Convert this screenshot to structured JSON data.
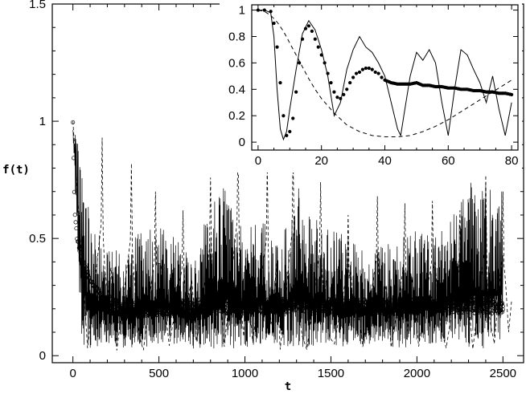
{
  "chart_data": [
    {
      "type": "line",
      "xlabel": "t",
      "ylabel": "f(t)",
      "xlim": [
        -120,
        2620
      ],
      "ylim": [
        -0.03,
        1.5
      ],
      "xticks": [
        0,
        500,
        1000,
        1500,
        2000,
        2500
      ],
      "yticks": [
        0,
        0.5,
        1,
        1.5
      ],
      "xtick_labels": [
        "0",
        "500",
        "1000",
        "1500",
        "2000",
        "2500"
      ],
      "ytick_labels": [
        "0",
        "0.5",
        "1",
        "1.5"
      ],
      "grid": false,
      "legend": "none",
      "series": [
        {
          "style": "dotted-points",
          "x": [
            0,
            10,
            25,
            50,
            80,
            120,
            160,
            200,
            250,
            300,
            400,
            500,
            700,
            900,
            1100,
            1300,
            1500,
            1700,
            1900,
            2100,
            2300,
            2500
          ],
          "y": [
            1.0,
            0.62,
            0.5,
            0.42,
            0.35,
            0.3,
            0.26,
            0.23,
            0.21,
            0.2,
            0.2,
            0.2,
            0.21,
            0.21,
            0.21,
            0.22,
            0.21,
            0.21,
            0.21,
            0.22,
            0.21,
            0.21
          ]
        },
        {
          "style": "solid",
          "description_values": "rapid oscillation between approximately 0.02 and 0.75 over t = 0 to 2500",
          "x": [
            0,
            50,
            100,
            200,
            300,
            400,
            500,
            600,
            700,
            800,
            900,
            1000,
            1100,
            1200,
            1300,
            1400,
            1500,
            1600,
            1700,
            1800,
            1900,
            2000,
            2100,
            2200,
            2300,
            2400,
            2500
          ],
          "y_max": [
            1.0,
            0.85,
            0.6,
            0.45,
            0.45,
            0.55,
            0.55,
            0.5,
            0.4,
            0.7,
            0.72,
            0.55,
            0.6,
            0.45,
            0.74,
            0.6,
            0.55,
            0.5,
            0.45,
            0.48,
            0.5,
            0.55,
            0.5,
            0.6,
            0.75,
            0.73,
            0.7
          ],
          "y_min": [
            0.95,
            0.05,
            0.03,
            0.05,
            0.03,
            0.03,
            0.05,
            0.05,
            0.03,
            0.03,
            0.03,
            0.03,
            0.05,
            0.05,
            0.03,
            0.03,
            0.05,
            0.03,
            0.05,
            0.05,
            0.03,
            0.03,
            0.05,
            0.05,
            0.03,
            0.03,
            0.05
          ]
        },
        {
          "style": "dashed",
          "peaks_x": [
            170,
            340,
            480,
            640,
            800,
            960,
            1130,
            1280,
            1440,
            1600,
            1770,
            1930,
            2090,
            2250,
            2400,
            2500
          ],
          "peaks_y": [
            0.93,
            0.82,
            0.7,
            0.62,
            0.76,
            0.95,
            0.82,
            0.88,
            0.74,
            0.6,
            0.68,
            0.65,
            0.66,
            0.62,
            0.77,
            0.7
          ],
          "min": 0.02
        }
      ]
    },
    {
      "type": "line",
      "inset": true,
      "xlim": [
        -2,
        82
      ],
      "ylim": [
        -0.06,
        1.04
      ],
      "xticks": [
        0,
        20,
        40,
        60,
        80
      ],
      "yticks": [
        0,
        0.2,
        0.4,
        0.6,
        0.8,
        1
      ],
      "xtick_labels": [
        "0",
        "20",
        "40",
        "60",
        "80"
      ],
      "ytick_labels": [
        "0",
        "0.2",
        "0.4",
        "0.6",
        "0.8",
        "1"
      ],
      "series": [
        {
          "style": "solid",
          "x": [
            0,
            2,
            4,
            5,
            6,
            7,
            8,
            9,
            10,
            12,
            14,
            16,
            18,
            20,
            22,
            24,
            26,
            28,
            30,
            32,
            34,
            36,
            38,
            40,
            42,
            44,
            45,
            46,
            48,
            50,
            52,
            54,
            56,
            58,
            60,
            62,
            64,
            66,
            68,
            70,
            72,
            74,
            76,
            78,
            80
          ],
          "y": [
            1.0,
            1.0,
            0.98,
            0.8,
            0.4,
            0.1,
            0.02,
            0.08,
            0.25,
            0.55,
            0.82,
            0.92,
            0.85,
            0.7,
            0.5,
            0.2,
            0.3,
            0.55,
            0.7,
            0.8,
            0.72,
            0.68,
            0.6,
            0.5,
            0.3,
            0.1,
            0.05,
            0.2,
            0.5,
            0.68,
            0.62,
            0.7,
            0.6,
            0.3,
            0.05,
            0.4,
            0.7,
            0.66,
            0.55,
            0.45,
            0.3,
            0.5,
            0.25,
            0.05,
            0.3
          ]
        },
        {
          "style": "points",
          "x": [
            0,
            2,
            4,
            5,
            6,
            7,
            8,
            9,
            10,
            11,
            12,
            13,
            14,
            15,
            16,
            17,
            18,
            19,
            20,
            21,
            22,
            23,
            24,
            25,
            26,
            27,
            28,
            29,
            30,
            31,
            32,
            33,
            34,
            35,
            36,
            37,
            38,
            39,
            40,
            42,
            44,
            46,
            48,
            50,
            52,
            54,
            56,
            58,
            60,
            62,
            64,
            66,
            68,
            70,
            72,
            74,
            76,
            78,
            80
          ],
          "y": [
            1.0,
            1.0,
            0.99,
            0.9,
            0.72,
            0.45,
            0.2,
            0.05,
            0.08,
            0.18,
            0.38,
            0.6,
            0.78,
            0.86,
            0.88,
            0.84,
            0.78,
            0.72,
            0.66,
            0.6,
            0.52,
            0.45,
            0.38,
            0.34,
            0.33,
            0.36,
            0.4,
            0.45,
            0.49,
            0.52,
            0.53,
            0.55,
            0.56,
            0.56,
            0.55,
            0.53,
            0.52,
            0.49,
            0.47,
            0.45,
            0.44,
            0.44,
            0.44,
            0.45,
            0.43,
            0.43,
            0.42,
            0.42,
            0.41,
            0.41,
            0.4,
            0.4,
            0.39,
            0.39,
            0.38,
            0.38,
            0.37,
            0.37,
            0.36
          ]
        },
        {
          "style": "dashed",
          "x": [
            0,
            2,
            4,
            6,
            8,
            10,
            12,
            14,
            16,
            18,
            20,
            24,
            28,
            32,
            36,
            40,
            44,
            48,
            52,
            56,
            60,
            64,
            68,
            72,
            76,
            80
          ],
          "y": [
            1.0,
            0.99,
            0.96,
            0.91,
            0.84,
            0.75,
            0.66,
            0.57,
            0.48,
            0.4,
            0.33,
            0.22,
            0.13,
            0.08,
            0.05,
            0.04,
            0.04,
            0.05,
            0.08,
            0.12,
            0.17,
            0.23,
            0.29,
            0.35,
            0.41,
            0.47
          ]
        }
      ]
    }
  ]
}
